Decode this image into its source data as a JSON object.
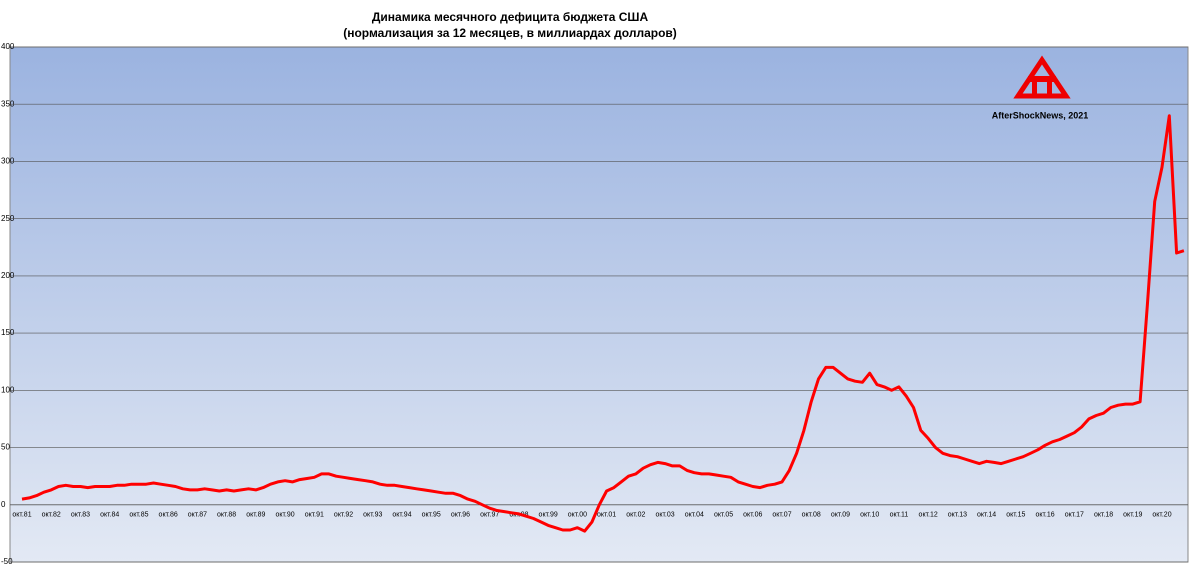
{
  "chart_data": {
    "type": "line",
    "title": "Динамика месячного дефицита бюджета США",
    "subtitle": "(нормализация за 12 месяцев, в миллиардах долларов)",
    "annotation": "AfterShockNews, 2021",
    "color": "#ff0000",
    "grid": true,
    "ylim": [
      -50,
      400
    ],
    "yticks": [
      -50,
      0,
      50,
      100,
      150,
      200,
      250,
      300,
      350,
      400
    ],
    "categories": [
      "окт.81",
      null,
      null,
      null,
      "окт.82",
      null,
      null,
      null,
      "окт.83",
      null,
      null,
      null,
      "окт.84",
      null,
      null,
      null,
      "окт.85",
      null,
      null,
      null,
      "окт.86",
      null,
      null,
      null,
      "окт.87",
      null,
      null,
      null,
      "окт.88",
      null,
      null,
      null,
      "окт.89",
      null,
      null,
      null,
      "окт.90",
      null,
      null,
      null,
      "окт.91",
      null,
      null,
      null,
      "окт.92",
      null,
      null,
      null,
      "окт.93",
      null,
      null,
      null,
      "окт.94",
      null,
      null,
      null,
      "окт.95",
      null,
      null,
      null,
      "окт.96",
      null,
      null,
      null,
      "окт.97",
      null,
      null,
      null,
      "окт.98",
      null,
      null,
      null,
      "окт.99",
      null,
      null,
      null,
      "окт.00",
      null,
      null,
      null,
      "окт.01",
      null,
      null,
      null,
      "окт.02",
      null,
      null,
      null,
      "окт.03",
      null,
      null,
      null,
      "окт.04",
      null,
      null,
      null,
      "окт.05",
      null,
      null,
      null,
      "окт.06",
      null,
      null,
      null,
      "окт.07",
      null,
      null,
      null,
      "окт.08",
      null,
      null,
      null,
      "окт.09",
      null,
      null,
      null,
      "окт.10",
      null,
      null,
      null,
      "окт.11",
      null,
      null,
      null,
      "окт.12",
      null,
      null,
      null,
      "окт.13",
      null,
      null,
      null,
      "окт.14",
      null,
      null,
      null,
      "окт.15",
      null,
      null,
      null,
      "окт.16",
      null,
      null,
      null,
      "окт.17",
      null,
      null,
      null,
      "окт.18",
      null,
      null,
      null,
      "окт.19",
      null,
      null,
      null,
      "окт.20",
      null,
      null,
      null
    ],
    "values": [
      5,
      6,
      8,
      11,
      13,
      16,
      17,
      16,
      16,
      15,
      16,
      16,
      16,
      17,
      17,
      18,
      18,
      18,
      19,
      18,
      17,
      16,
      14,
      13,
      13,
      14,
      13,
      12,
      13,
      12,
      13,
      14,
      13,
      15,
      18,
      20,
      21,
      20,
      22,
      23,
      24,
      27,
      27,
      25,
      24,
      23,
      22,
      21,
      20,
      18,
      17,
      17,
      16,
      15,
      14,
      13,
      12,
      11,
      10,
      10,
      8,
      5,
      3,
      0,
      -3,
      -5,
      -6,
      -7,
      -8,
      -10,
      -12,
      -15,
      -18,
      -20,
      -22,
      -22,
      -20,
      -23,
      -15,
      0,
      12,
      15,
      20,
      25,
      27,
      32,
      35,
      37,
      36,
      34,
      34,
      30,
      28,
      27,
      27,
      26,
      25,
      24,
      20,
      18,
      16,
      15,
      17,
      18,
      20,
      30,
      45,
      65,
      90,
      110,
      120,
      120,
      115,
      110,
      108,
      107,
      115,
      105,
      103,
      100,
      103,
      95,
      85,
      65,
      58,
      50,
      45,
      43,
      42,
      40,
      38,
      36,
      38,
      37,
      36,
      38,
      40,
      42,
      45,
      48,
      52,
      55,
      57,
      60,
      63,
      68,
      75,
      78,
      80,
      85,
      87,
      88,
      88,
      90,
      175,
      265,
      295,
      340,
      220,
      222
    ]
  }
}
